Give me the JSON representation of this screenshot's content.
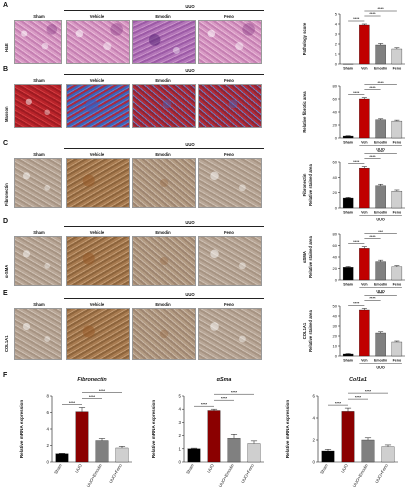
{
  "panels": {
    "A": {
      "letter": "A",
      "row_label": "H&E"
    },
    "B": {
      "letter": "B",
      "row_label": "Masson"
    },
    "C": {
      "letter": "C",
      "row_label": "Fibronectin"
    },
    "D": {
      "letter": "D",
      "row_label": "α-SMA"
    },
    "E": {
      "letter": "E",
      "row_label": "COL1A1"
    },
    "F": {
      "letter": "F"
    }
  },
  "columns": {
    "sham": "Sham",
    "vehicle": "Vehicle",
    "emodin": "Emodin",
    "feno": "Feno",
    "uuo": "UUO"
  },
  "chart_data": [
    {
      "id": "A",
      "type": "bar",
      "categories": [
        "Sham",
        "Veh",
        "Emodin",
        "Feno"
      ],
      "values": [
        0,
        3.9,
        1.9,
        1.5
      ],
      "errors": [
        0,
        0.1,
        0.15,
        0.12
      ],
      "ylabel": "Pathology score",
      "ylim": [
        0,
        5
      ],
      "yticks": [
        0,
        1,
        2,
        3,
        4,
        5
      ],
      "xgroup": "",
      "sig": [
        "****",
        "****",
        "****"
      ],
      "colors": [
        "#000000",
        "#c00000",
        "#808080",
        "#cfcfcf"
      ]
    },
    {
      "id": "B",
      "type": "bar",
      "categories": [
        "Sham",
        "Veh",
        "Emodin",
        "Feno"
      ],
      "values": [
        3,
        60,
        28,
        26
      ],
      "errors": [
        0.5,
        2,
        1.5,
        1.5
      ],
      "ylabel": "Relative fibrotic area",
      "ylim": [
        0,
        80
      ],
      "yticks": [
        0,
        20,
        40,
        60,
        80
      ],
      "xgroup": "UUO",
      "sig": [
        "****",
        "****",
        "****"
      ],
      "colors": [
        "#000000",
        "#c00000",
        "#808080",
        "#cfcfcf"
      ]
    },
    {
      "id": "C",
      "type": "bar",
      "categories": [
        "Sham",
        "Veh",
        "Emodin",
        "Feno"
      ],
      "values": [
        13,
        52,
        29,
        22
      ],
      "errors": [
        1,
        2,
        2,
        1.5
      ],
      "ylabel": "Fibronectin\nRelative stained area",
      "ylim": [
        0,
        60
      ],
      "yticks": [
        0,
        20,
        40,
        60
      ],
      "xgroup": "UUO",
      "sig": [
        "****",
        "****",
        "****"
      ],
      "colors": [
        "#000000",
        "#c00000",
        "#808080",
        "#cfcfcf"
      ]
    },
    {
      "id": "D",
      "type": "bar",
      "categories": [
        "Sham",
        "Veh",
        "Emodin",
        "Feno"
      ],
      "values": [
        22,
        55,
        32,
        23
      ],
      "errors": [
        1.5,
        3,
        2.5,
        2
      ],
      "ylabel": "αSMA\nRelative stained area",
      "ylim": [
        0,
        80
      ],
      "yticks": [
        0,
        20,
        40,
        60,
        80
      ],
      "xgroup": "UUO",
      "sig": [
        "****",
        "****",
        "***"
      ],
      "colors": [
        "#000000",
        "#c00000",
        "#808080",
        "#cfcfcf"
      ]
    },
    {
      "id": "E",
      "type": "bar",
      "categories": [
        "Sham",
        "Veh",
        "Emodin",
        "Feno"
      ],
      "values": [
        2,
        46,
        23,
        14
      ],
      "errors": [
        0.5,
        1.5,
        1.2,
        1
      ],
      "ylabel": "COL1A1\nRelative stained area",
      "ylim": [
        0,
        50
      ],
      "yticks": [
        0,
        10,
        20,
        30,
        40,
        50
      ],
      "xgroup": "UUO",
      "sig": [
        "****",
        "****",
        "****"
      ],
      "colors": [
        "#000000",
        "#c00000",
        "#808080",
        "#cfcfcf"
      ]
    },
    {
      "id": "F1",
      "type": "bar",
      "title": "Fibronectin",
      "categories": [
        "Sham",
        "UUO",
        "UUO+Emodin",
        "UUO+Feno"
      ],
      "values": [
        1,
        6.1,
        2.6,
        1.7
      ],
      "errors": [
        0.05,
        0.5,
        0.25,
        0.2
      ],
      "ylabel": "Relative mRNA expression",
      "ylim": [
        0,
        8
      ],
      "yticks": [
        0,
        2,
        4,
        6,
        8
      ],
      "sig": [
        "****",
        "****",
        "****"
      ],
      "colors": [
        "#000000",
        "#8b0000",
        "#808080",
        "#cfcfcf"
      ]
    },
    {
      "id": "F2",
      "type": "bar",
      "title": "αSma",
      "categories": [
        "Sham",
        "UUO",
        "UUO+Emodin",
        "UUO+Feno"
      ],
      "values": [
        1,
        3.9,
        1.8,
        1.4
      ],
      "errors": [
        0.05,
        0.1,
        0.3,
        0.2
      ],
      "ylabel": "Relative mRNA expression",
      "ylim": [
        0,
        5
      ],
      "yticks": [
        0,
        1,
        2,
        3,
        4,
        5
      ],
      "sig": [
        "****",
        "****",
        "****"
      ],
      "colors": [
        "#000000",
        "#8b0000",
        "#808080",
        "#cfcfcf"
      ]
    },
    {
      "id": "F3",
      "type": "bar",
      "title": "Col1a1",
      "categories": [
        "Sham",
        "UUO",
        "UUO+Emodin",
        "UUO+Feno"
      ],
      "values": [
        1,
        4.6,
        2.0,
        1.4
      ],
      "errors": [
        0.15,
        0.3,
        0.2,
        0.15
      ],
      "ylabel": "Relative mRNA expression",
      "ylim": [
        0,
        6
      ],
      "yticks": [
        0,
        2,
        4,
        6
      ],
      "sig": [
        "****",
        "****",
        "****"
      ],
      "colors": [
        "#000000",
        "#8b0000",
        "#808080",
        "#cfcfcf"
      ]
    }
  ]
}
